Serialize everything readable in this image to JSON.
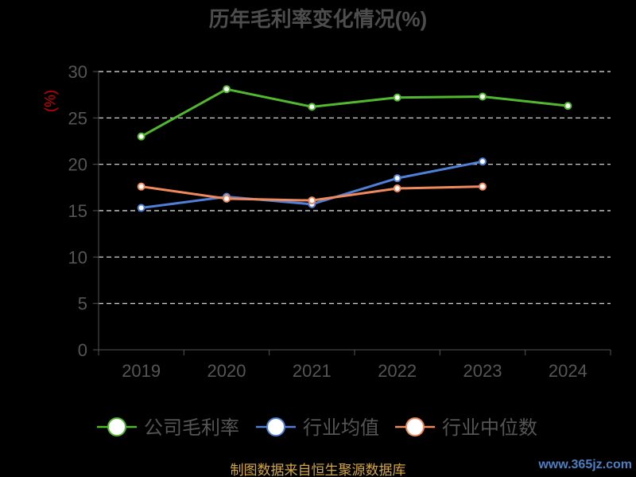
{
  "chart_data": {
    "type": "line",
    "title": "历年毛利率变化情况(%)",
    "ylabel": "(%)",
    "xlabel": "",
    "categories": [
      "2019",
      "2020",
      "2021",
      "2022",
      "2023",
      "2024"
    ],
    "ylim": [
      0,
      30
    ],
    "yticks": [
      "0",
      "5",
      "10",
      "15",
      "20",
      "25",
      "30"
    ],
    "grid": true,
    "legend_position": "bottom",
    "series": [
      {
        "name": "公司毛利率",
        "color": "#52b830",
        "values": [
          23.0,
          28.1,
          26.2,
          27.2,
          27.3,
          26.3
        ]
      },
      {
        "name": "行业均值",
        "color": "#4f7fd6",
        "values": [
          15.3,
          16.5,
          15.7,
          18.5,
          20.3,
          null
        ]
      },
      {
        "name": "行业中位数",
        "color": "#f0895c",
        "values": [
          17.6,
          16.3,
          16.1,
          17.4,
          17.6,
          null
        ]
      }
    ]
  },
  "footer": {
    "source": "制图数据来自恒生聚源数据库",
    "watermark": "www.365jz.com"
  }
}
